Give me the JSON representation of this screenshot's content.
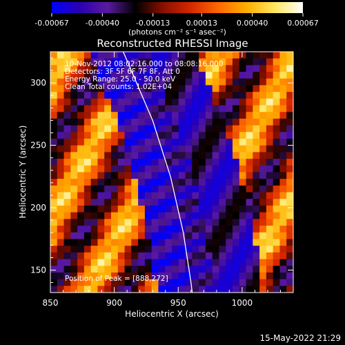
{
  "chart_data": {
    "type": "heatmap",
    "title": "Reconstructed RHESSI Image",
    "xlabel": "Heliocentric X (arcsec)",
    "ylabel": "Heliocentric Y (arcsec)",
    "xlim": [
      850,
      1040
    ],
    "ylim": [
      132,
      325
    ],
    "x_ticks": [
      "850",
      "900",
      "950",
      "1000"
    ],
    "x_tick_values": [
      850,
      900,
      950,
      1000
    ],
    "y_ticks": [
      "150",
      "200",
      "250",
      "300"
    ],
    "y_tick_values": [
      150,
      200,
      250,
      300
    ],
    "colorbar": {
      "ticks": [
        "-0.00067",
        "-0.00040",
        "-0.00013",
        "0.00013",
        "0.00040",
        "0.00067"
      ],
      "tick_values": [
        -0.00067,
        -0.0004,
        -0.00013,
        0.00013,
        0.0004,
        0.00067
      ],
      "range": [
        -0.00067,
        0.00067
      ],
      "unit_text": "(photons cm⁻² s⁻¹ asec⁻²)",
      "colors": [
        "#0000ff",
        "#2a00b0",
        "#5a1aa0",
        "#000000",
        "#8a1000",
        "#d82800",
        "#ff6a00",
        "#ffb000",
        "#ffe860",
        "#ffffff"
      ]
    },
    "annotations": [
      "10-Nov-2012 08:02:16.000 to 08:08:16.000",
      "Detectors: 3F 5F 6F 7F 8F, Att 0",
      "Energy Range: 25.0 - 50.0 keV",
      "Clean      Total counts: 1.02E+04"
    ],
    "peak_label": "Position of Peak = [888,272]",
    "peak": [
      888,
      272
    ],
    "limb_curve": [
      [
        907,
        325
      ],
      [
        930,
        270
      ],
      [
        944,
        225
      ],
      [
        954,
        180
      ],
      [
        960,
        140
      ],
      [
        961,
        132
      ]
    ]
  },
  "footer": {
    "timestamp": "15-May-2022 21:29"
  }
}
